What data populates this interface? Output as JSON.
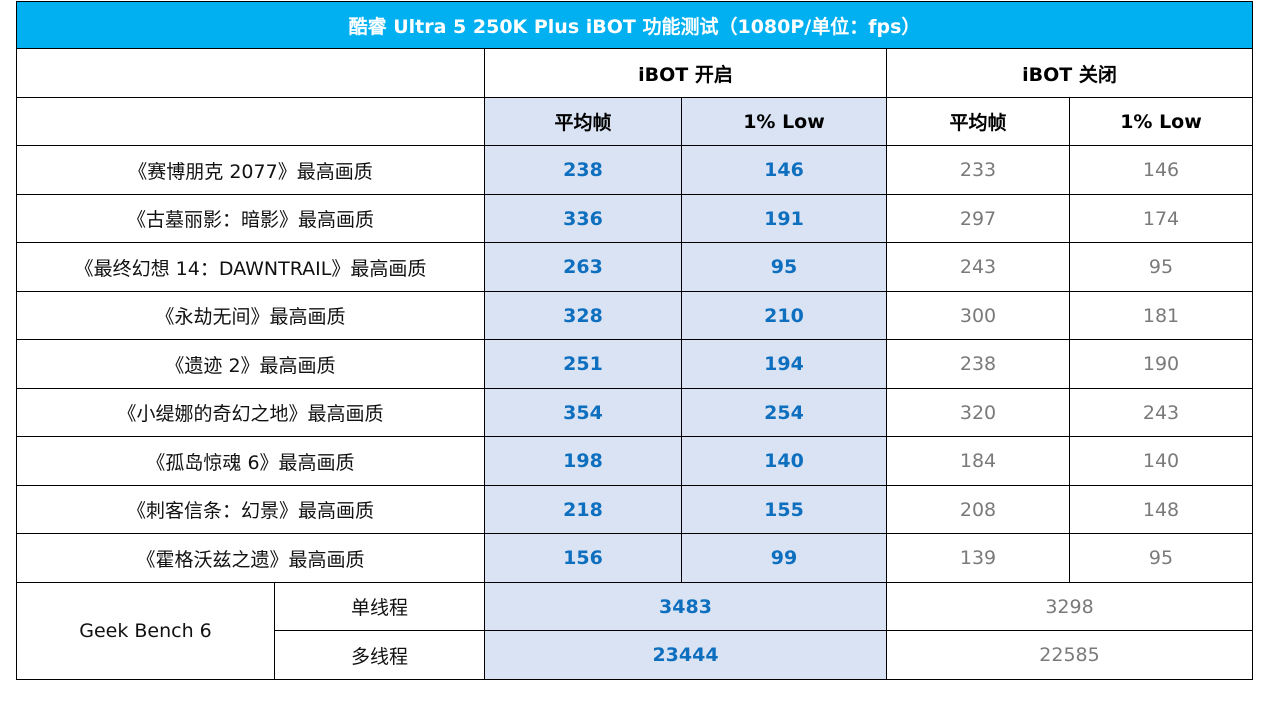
{
  "title": "酷睿 Ultra 5 250K Plus iBOT 功能测试（1080P/单位：fps）",
  "groups": {
    "on": "iBOT 开启",
    "off": "iBOT 关闭"
  },
  "subheaders": {
    "avg": "平均帧",
    "low": "1% Low"
  },
  "colors": {
    "title_bg": "#00b0f0",
    "on_bg": "#dae3f3",
    "on_text": "#0e6fbf",
    "off_text": "#7a7a7a"
  },
  "chart_data": {
    "type": "table",
    "title": "酷睿 Ultra 5 250K Plus iBOT 功能测试（1080P/单位：fps）",
    "columns": [
      "iBOT 开启 平均帧",
      "iBOT 开启 1% Low",
      "iBOT 关闭 平均帧",
      "iBOT 关闭 1% Low"
    ],
    "rows": [
      {
        "name": "《赛博朋克 2077》最高画质",
        "on_avg": "238",
        "on_low": "146",
        "off_avg": "233",
        "off_low": "146"
      },
      {
        "name": "《古墓丽影：暗影》最高画质",
        "on_avg": "336",
        "on_low": "191",
        "off_avg": "297",
        "off_low": "174"
      },
      {
        "name": "《最终幻想 14：DAWNTRAIL》最高画质",
        "on_avg": "263",
        "on_low": "95",
        "off_avg": "243",
        "off_low": "95"
      },
      {
        "name": "《永劫无间》最高画质",
        "on_avg": "328",
        "on_low": "210",
        "off_avg": "300",
        "off_low": "181"
      },
      {
        "name": "《遗迹 2》最高画质",
        "on_avg": "251",
        "on_low": "194",
        "off_avg": "238",
        "off_low": "190"
      },
      {
        "name": "《小缇娜的奇幻之地》最高画质",
        "on_avg": "354",
        "on_low": "254",
        "off_avg": "320",
        "off_low": "243"
      },
      {
        "name": "《孤岛惊魂 6》最高画质",
        "on_avg": "198",
        "on_low": "140",
        "off_avg": "184",
        "off_low": "140"
      },
      {
        "name": "《刺客信条：幻景》最高画质",
        "on_avg": "218",
        "on_low": "155",
        "off_avg": "208",
        "off_low": "148"
      },
      {
        "name": "《霍格沃兹之遗》最高画质",
        "on_avg": "156",
        "on_low": "99",
        "off_avg": "139",
        "off_low": "95"
      }
    ],
    "benchmark": {
      "name": "Geek Bench 6",
      "rows": [
        {
          "label": "单线程",
          "on": "3483",
          "off": "3298"
        },
        {
          "label": "多线程",
          "on": "23444",
          "off": "22585"
        }
      ]
    }
  }
}
